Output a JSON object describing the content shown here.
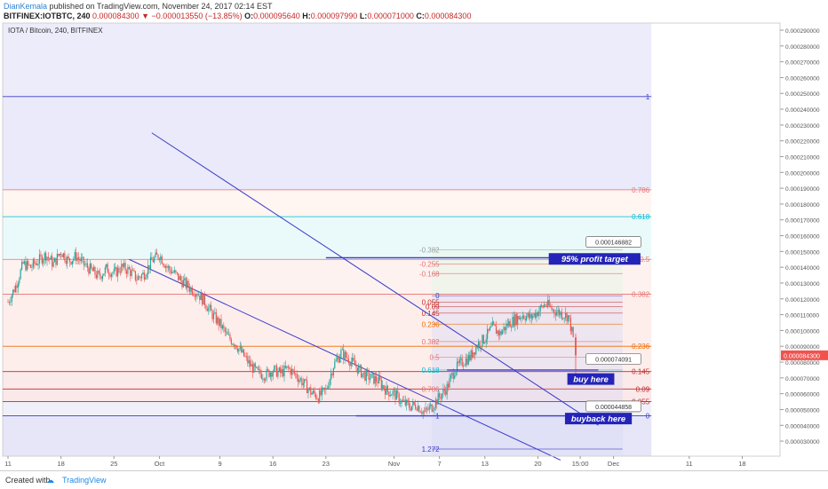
{
  "header": {
    "author": "DianKemala",
    "published": "published on TradingView.com, November 24, 2017 02:14 EST",
    "symbol": "BITFINEX:IOTBTC, 240",
    "last": "0.000084300",
    "change": "−0.000013550 (−13.85%)",
    "o_label": "O:",
    "o": "0.000095640",
    "h_label": "H:",
    "h": "0.000097990",
    "l_label": "L:",
    "l": "0.000071000",
    "c_label": "C:",
    "c": "0.000084300"
  },
  "footer": {
    "created": "Created with",
    "brand": "TradingView"
  },
  "colors": {
    "up": "#26a69a",
    "down": "#ef5350",
    "channel": "#3b3bc9",
    "label_bg": "#2424b8"
  },
  "chart_data": {
    "type": "candlestick",
    "legend_label": "IOTA / Bitcoin, 240, BITFINEX",
    "ylim": [
      1.6e-05,
      0.00029
    ],
    "y_ticks": [
      "0.000290000",
      "0.000280000",
      "0.000270000",
      "0.000260000",
      "0.000250000",
      "0.000240000",
      "0.000230000",
      "0.000220000",
      "0.000210000",
      "0.000200000",
      "0.000190000",
      "0.000180000",
      "0.000170000",
      "0.000160000",
      "0.000150000",
      "0.000140000",
      "0.000130000",
      "0.000120000",
      "0.000110000",
      "0.000100000",
      "0.000090000",
      "0.000080000",
      "0.000070000",
      "0.000060000",
      "0.000050000",
      "0.000040000",
      "0.000030000",
      "0.000020000"
    ],
    "x_ticks": [
      {
        "label": "11",
        "day": 0
      },
      {
        "label": "18",
        "day": 7
      },
      {
        "label": "25",
        "day": 14
      },
      {
        "label": "Oct",
        "day": 20
      },
      {
        "label": "9",
        "day": 28
      },
      {
        "label": "16",
        "day": 35
      },
      {
        "label": "23",
        "day": 42
      },
      {
        "label": "Nov",
        "day": 51
      },
      {
        "label": "7",
        "day": 57
      },
      {
        "label": "13",
        "day": 63
      },
      {
        "label": "20",
        "day": 70
      },
      {
        "label": "15:00",
        "day": 75.6
      },
      {
        "label": "Dec",
        "day": 80
      },
      {
        "label": "11",
        "day": 90
      },
      {
        "label": "18",
        "day": 97
      }
    ],
    "price_path": [
      [
        0,
        0.000118
      ],
      [
        1,
        0.000128
      ],
      [
        2,
        0.000142
      ],
      [
        3,
        0.00014
      ],
      [
        5,
        0.000148
      ],
      [
        6,
        0.000142
      ],
      [
        7,
        0.00015
      ],
      [
        8,
        0.000144
      ],
      [
        9,
        0.000147
      ],
      [
        10,
        0.000142
      ],
      [
        11,
        0.000138
      ],
      [
        12,
        0.000134
      ],
      [
        13,
        0.000139
      ],
      [
        14,
        0.000136
      ],
      [
        15,
        0.00014
      ],
      [
        16,
        0.000138
      ],
      [
        17,
        0.000133
      ],
      [
        18,
        0.000136
      ],
      [
        19,
        0.000144
      ],
      [
        20,
        0.000148
      ],
      [
        21,
        0.00014
      ],
      [
        22,
        0.000136
      ],
      [
        23,
        0.000131
      ],
      [
        24,
        0.000127
      ],
      [
        25,
        0.000124
      ],
      [
        26,
        0.000118
      ],
      [
        27,
        0.00011
      ],
      [
        28,
        0.000104
      ],
      [
        29,
        9.6e-05
      ],
      [
        30,
        9.2e-05
      ],
      [
        31,
        8.5e-05
      ],
      [
        32,
        7.8e-05
      ],
      [
        33,
        7.3e-05
      ],
      [
        34,
        7.2e-05
      ],
      [
        35,
        7.5e-05
      ],
      [
        36,
        7.3e-05
      ],
      [
        37,
        7.6e-05
      ],
      [
        38,
        7.2e-05
      ],
      [
        39,
        6.7e-05
      ],
      [
        40,
        6.1e-05
      ],
      [
        41,
        5.8e-05
      ],
      [
        42,
        6.2e-05
      ],
      [
        43,
        7.8e-05
      ],
      [
        44,
        8.6e-05
      ],
      [
        45,
        8.2e-05
      ],
      [
        46,
        7.7e-05
      ],
      [
        47,
        7.2e-05
      ],
      [
        48,
        7e-05
      ],
      [
        49,
        6.8e-05
      ],
      [
        50,
        6.2e-05
      ],
      [
        51,
        6e-05
      ],
      [
        52,
        5.5e-05
      ],
      [
        53,
        5.2e-05
      ],
      [
        54,
        5.3e-05
      ],
      [
        55,
        4.8e-05
      ],
      [
        56,
        5.2e-05
      ],
      [
        57,
        5.8e-05
      ],
      [
        58,
        6.4e-05
      ],
      [
        59,
        7.5e-05
      ],
      [
        60,
        8e-05
      ],
      [
        61,
        8.3e-05
      ],
      [
        62,
        9.1e-05
      ],
      [
        63,
        9.5e-05
      ],
      [
        64,
        0.000102
      ],
      [
        65,
        9.8e-05
      ],
      [
        66,
        0.000104
      ],
      [
        67,
        0.000107
      ],
      [
        68,
        0.00011
      ],
      [
        69,
        0.000108
      ],
      [
        70,
        0.000112
      ],
      [
        71,
        0.000117
      ],
      [
        72,
        0.000113
      ],
      [
        73,
        0.000111
      ],
      [
        74,
        0.000109
      ],
      [
        74.6,
        9.7e-05
      ],
      [
        75,
        8.4e-05
      ]
    ],
    "big_fib": {
      "label_day": 85,
      "levels": [
        {
          "label": "1",
          "price": 0.000248,
          "color": "#3b3bc9"
        },
        {
          "label": "0.786",
          "price": 0.000189,
          "color": "#e57373"
        },
        {
          "label": "0.618",
          "price": 0.000172,
          "color": "#00bcd4"
        },
        {
          "label": "0.5",
          "price": 0.000145,
          "color": "#e57373"
        },
        {
          "label": "0.382",
          "price": 0.000123,
          "color": "#e57373"
        },
        {
          "label": "0.236",
          "price": 9e-05,
          "color": "#ef6c00"
        },
        {
          "label": "0.145",
          "price": 7.4e-05,
          "color": "#c62828"
        },
        {
          "label": "0.09",
          "price": 6.3e-05,
          "color": "#c62828"
        },
        {
          "label": "0.055",
          "price": 5.5e-05,
          "color": "#c62828"
        },
        {
          "label": "0",
          "price": 4.6e-05,
          "color": "#3b3bc9"
        }
      ]
    },
    "small_fib": {
      "label_day": 57,
      "levels": [
        {
          "label": "-0.382",
          "price": 0.000151,
          "color": "#9e9e9e"
        },
        {
          "label": "-0.255",
          "price": 0.000142,
          "color": "#e57373"
        },
        {
          "label": "-0.168",
          "price": 0.000136,
          "color": "#e57373"
        },
        {
          "label": "0",
          "price": 0.000122,
          "color": "#3b3bc9"
        },
        {
          "label": "0.055",
          "price": 0.000118,
          "color": "#c62828"
        },
        {
          "label": "0.09",
          "price": 0.000115,
          "color": "#c62828"
        },
        {
          "label": "0.145",
          "price": 0.000111,
          "color": "#c62828"
        },
        {
          "label": "0.236",
          "price": 0.000104,
          "color": "#ef6c00"
        },
        {
          "label": "0.382",
          "price": 9.3e-05,
          "color": "#e57373"
        },
        {
          "label": "0.5",
          "price": 8.3e-05,
          "color": "#e57373"
        },
        {
          "label": "0.618",
          "price": 7.5e-05,
          "color": "#00bcd4"
        },
        {
          "label": "0.786",
          "price": 6.3e-05,
          "color": "#e57373"
        },
        {
          "label": "1",
          "price": 4.6e-05,
          "color": "#3b3bc9"
        },
        {
          "label": "1.272",
          "price": 2.5e-05,
          "color": "#3b3bc9"
        }
      ]
    },
    "channel_lines": [
      {
        "start": [
          19,
          0.000225
        ],
        "end": [
          78,
          4e-05
        ]
      },
      {
        "start": [
          16,
          0.000145
        ],
        "end": [
          73,
          1.8e-05
        ]
      }
    ],
    "annotations": [
      {
        "name": "profit-target",
        "text": "95% profit target",
        "day": 77.5,
        "price": 0.000145,
        "line_from_day": 42,
        "line_to_day": 78,
        "line_price": 0.000146
      },
      {
        "name": "buy-here",
        "text": "buy here",
        "day": 77,
        "price": 6.9e-05,
        "line_from_day": 58,
        "line_to_day": 78,
        "line_price": 7.5e-05
      },
      {
        "name": "buyback-here",
        "text": "buyback here",
        "day": 78,
        "price": 4.4e-05,
        "line_from_day": 46,
        "line_to_day": 78,
        "line_price": 4.6e-05
      }
    ],
    "price_labels": [
      {
        "text": "0.000146882",
        "day": 80,
        "price": 0.000156
      },
      {
        "text": "0.000074091",
        "day": 80,
        "price": 8.2e-05
      },
      {
        "text": "0.000044858",
        "day": 80,
        "price": 5.2e-05
      }
    ],
    "current_price": {
      "text": "0.000084300",
      "price": 8.43e-05
    }
  }
}
